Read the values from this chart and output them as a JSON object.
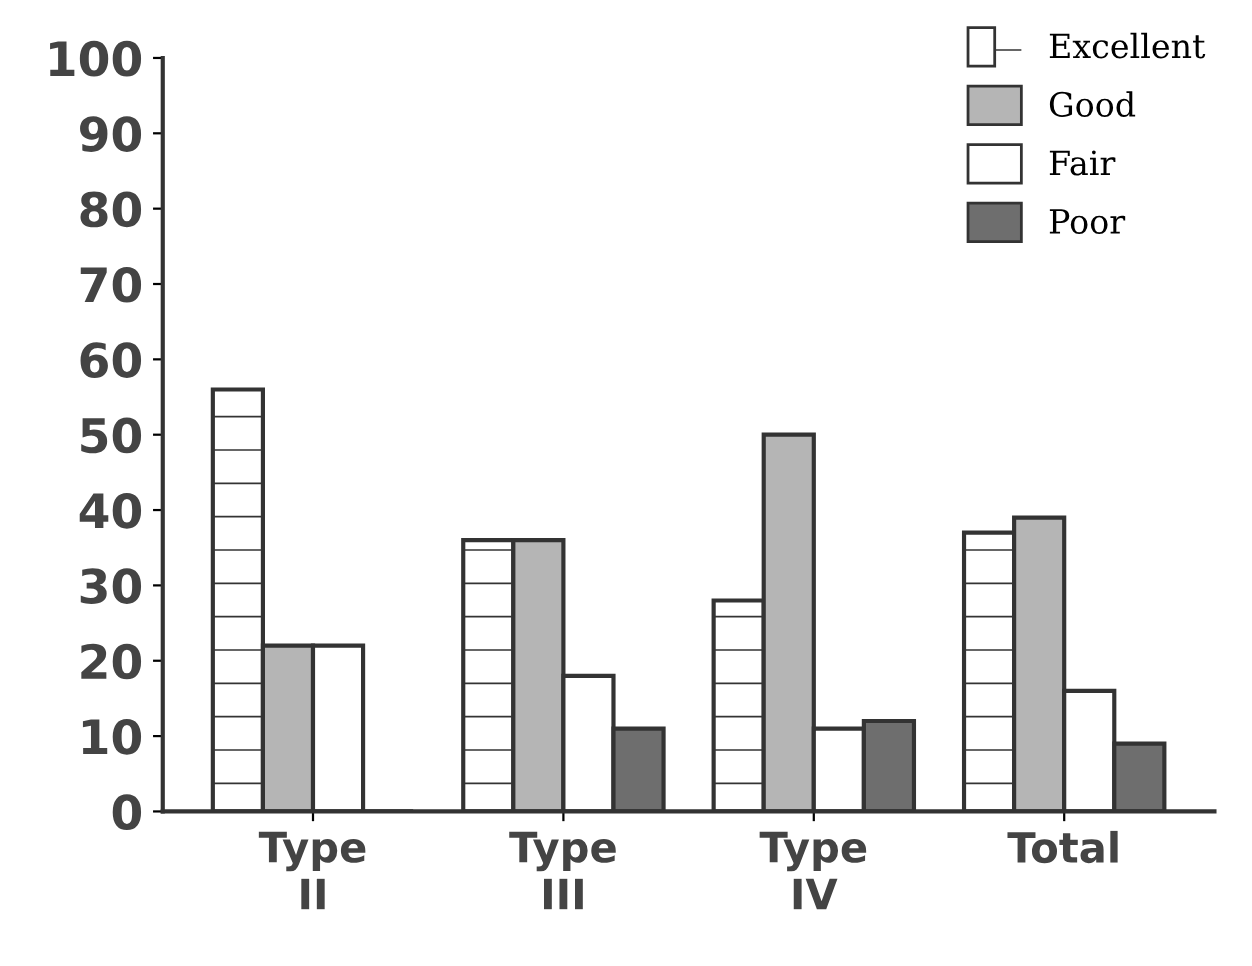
{
  "chart_data": {
    "type": "bar",
    "categories": [
      "Type\nII",
      "Type\nIII",
      "Type\nIV",
      "Total"
    ],
    "series": [
      {
        "name": "Excellent",
        "color": "#ffffff",
        "values": [
          56,
          36,
          28,
          37
        ]
      },
      {
        "name": "Good",
        "color": "#b5b5b5",
        "values": [
          22,
          36,
          50,
          39
        ]
      },
      {
        "name": "Fair",
        "color": "#ffffff",
        "values": [
          22,
          18,
          11,
          16
        ]
      },
      {
        "name": "Poor",
        "color": "#6e6e6e",
        "values": [
          0,
          11,
          12,
          9
        ]
      }
    ],
    "ylim": [
      0,
      100
    ],
    "yticks": [
      0,
      10,
      20,
      30,
      40,
      50,
      60,
      70,
      80,
      90,
      100
    ],
    "grid": false,
    "legend": "top right"
  }
}
